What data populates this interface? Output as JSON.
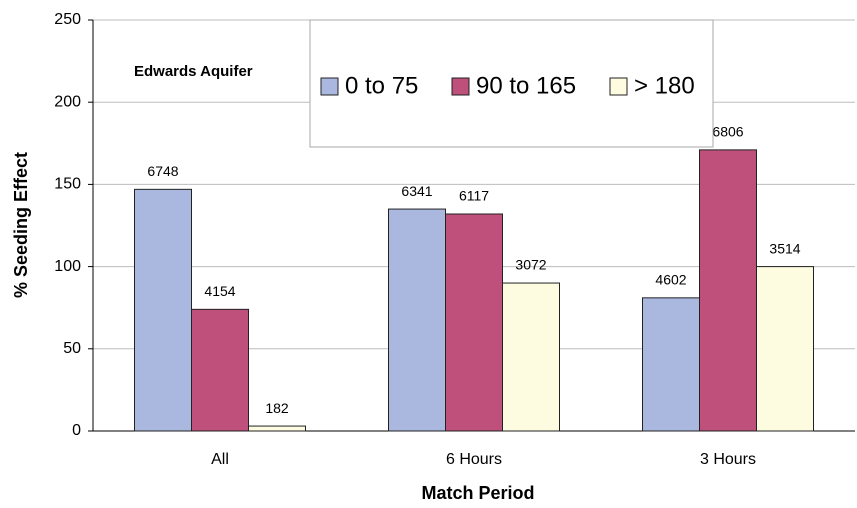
{
  "chart_data": {
    "type": "bar",
    "title": "Edwards Aquifer",
    "x_label": "Match Period",
    "y_label": "% Seeding Effect",
    "categories": [
      "All",
      "6 Hours",
      "3 Hours"
    ],
    "series": [
      {
        "name": "0 to 75",
        "color": "#aab8e0",
        "values": [
          147,
          135,
          81
        ],
        "annotations": [
          6748,
          6341,
          4602
        ]
      },
      {
        "name": "90 to 165",
        "color": "#bf4f7b",
        "values": [
          74,
          132,
          171
        ],
        "annotations": [
          4154,
          6117,
          6806
        ]
      },
      {
        "name": "> 180",
        "color": "#fdfbe0",
        "values": [
          3,
          90,
          100
        ],
        "annotations": [
          182,
          3072,
          3514
        ]
      }
    ],
    "ylim": [
      0,
      250
    ],
    "yticks": [
      0,
      50,
      100,
      150,
      200,
      250
    ],
    "grid": true,
    "legend": "top"
  }
}
